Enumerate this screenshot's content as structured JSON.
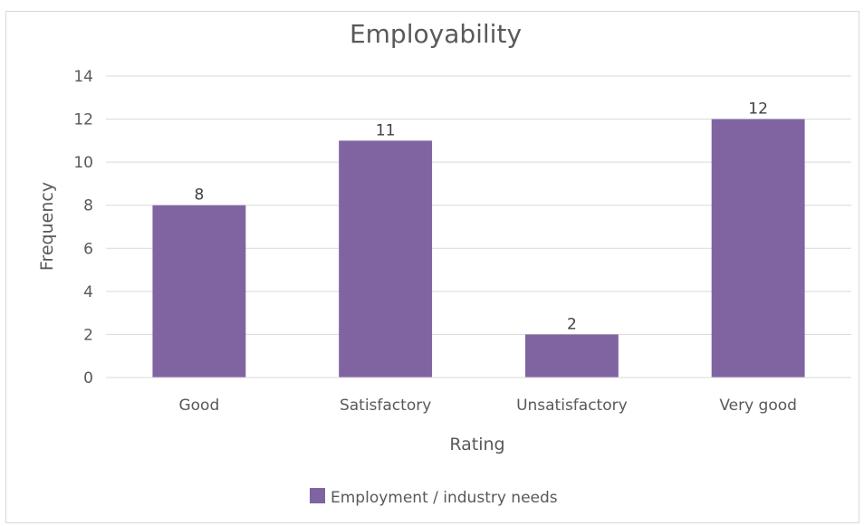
{
  "chart_data": {
    "type": "bar",
    "title": "Employability",
    "xlabel": "Rating",
    "ylabel": "Frequency",
    "categories": [
      "Good",
      "Satisfactory",
      "Unsatisfactory",
      "Very good"
    ],
    "series": [
      {
        "name": "Employment / industry needs",
        "values": [
          8,
          11,
          2,
          12
        ],
        "color": "#8064a2"
      }
    ],
    "ylim": [
      0,
      14
    ],
    "yticks": [
      0,
      2,
      4,
      6,
      8,
      10,
      12,
      14
    ],
    "data_labels": true,
    "grid": "horizontal",
    "legend_position": "bottom"
  }
}
